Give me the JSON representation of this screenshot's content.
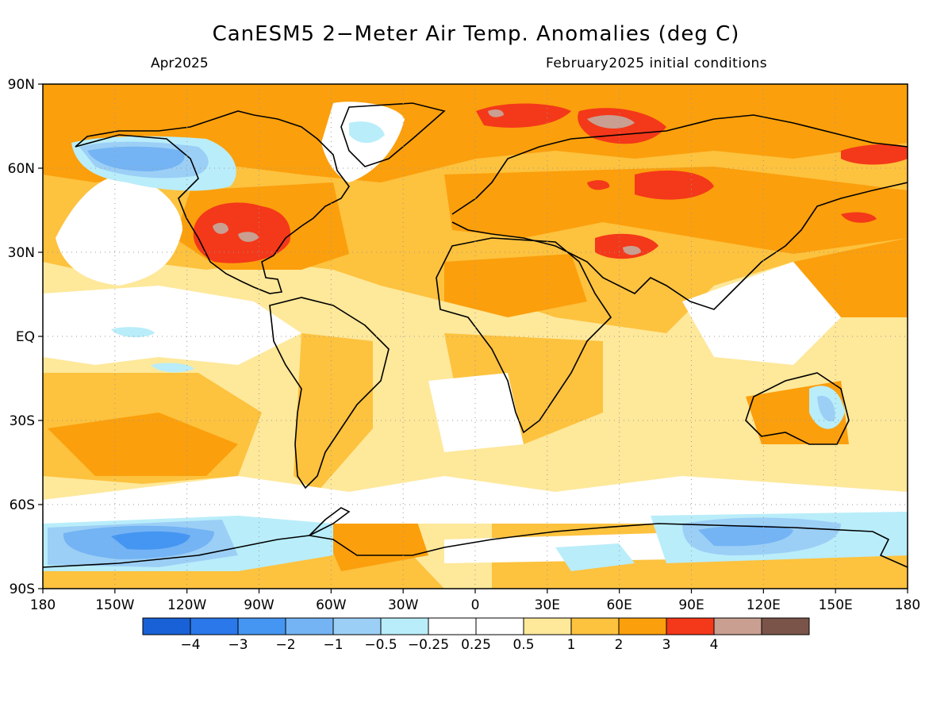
{
  "title": "CanESM5 2−Meter Air Temp. Anomalies (deg C)",
  "subtitle_left": "Apr2025",
  "subtitle_right": "February2025 initial conditions",
  "lat_labels": [
    "90N",
    "60N",
    "30N",
    "EQ",
    "30S",
    "60S",
    "90S"
  ],
  "lon_labels": [
    "180",
    "150W",
    "120W",
    "90W",
    "60W",
    "30W",
    "0",
    "30E",
    "60E",
    "90E",
    "120E",
    "150E",
    "180"
  ],
  "colorbar": {
    "colors": [
      "#1861d6",
      "#2a78ea",
      "#4596f2",
      "#74b4f4",
      "#9ccff6",
      "#b9edfa",
      "#ffffff",
      "#ffffff",
      "#fee89a",
      "#fdc23e",
      "#fb9f0c",
      "#f4381a",
      "#c99f91",
      "#7a5448"
    ],
    "labels": [
      "−4",
      "−3",
      "−2",
      "−1",
      "−0.5",
      "−0.25",
      "0.25",
      "0.5",
      "1",
      "2",
      "3",
      "4"
    ]
  },
  "background_color": "#fee89a",
  "regions": [
    {
      "name": "alaska-cold-anomaly",
      "value": -1
    },
    {
      "name": "us-warm-anomaly",
      "value": 2
    },
    {
      "name": "barents-warm-anomaly",
      "value": 2
    },
    {
      "name": "siberia-warm-anomaly",
      "value": 2
    },
    {
      "name": "tibet-warm-anomaly",
      "value": 2
    },
    {
      "name": "australia-cool-anomaly",
      "value": -0.5
    },
    {
      "name": "southern-ocean-cold-anomaly",
      "value": -1
    },
    {
      "name": "east-antarctica-cool-anomaly",
      "value": -0.5
    }
  ]
}
